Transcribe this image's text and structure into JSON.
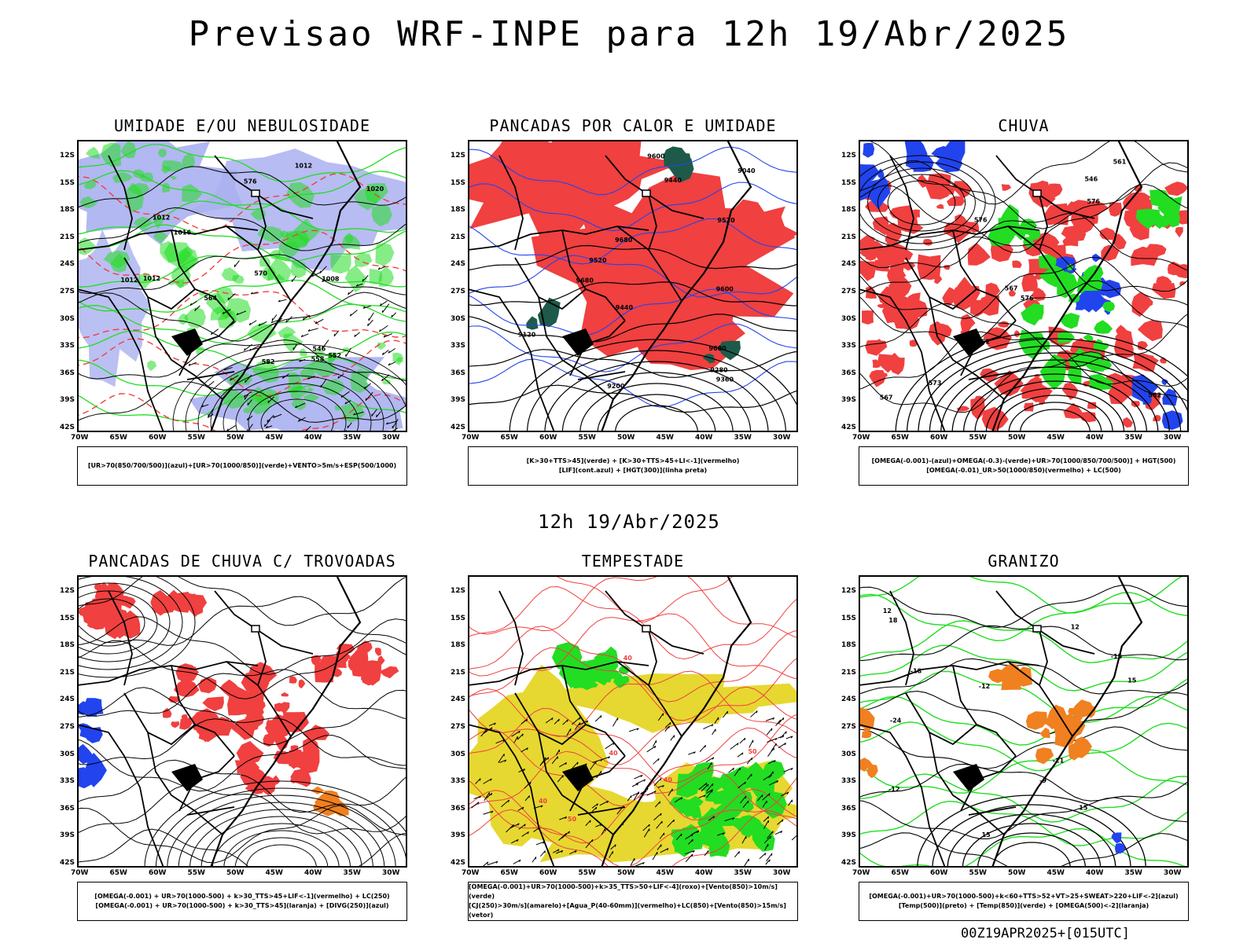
{
  "header": {
    "title": "Previsao WRF-INPE  para 12h 19/Abr/2025",
    "subtitle": "12h 19/Abr/2025",
    "footer": "00Z19APR2025+[015UTC]"
  },
  "axes": {
    "lat_ticks": [
      "12S",
      "15S",
      "18S",
      "21S",
      "24S",
      "27S",
      "30S",
      "33S",
      "36S",
      "39S",
      "42S"
    ],
    "lon_ticks": [
      "70W",
      "65W",
      "60W",
      "55W",
      "50W",
      "45W",
      "40W",
      "35W",
      "30W"
    ]
  },
  "colors": {
    "red": "#f04040",
    "green": "#22dd22",
    "blue": "#2244ee",
    "lavender": "#aab0f0",
    "yellow": "#e6d830",
    "dark_green": "#1e5a4a",
    "orange": "#f08020",
    "black": "#000000"
  },
  "panels": [
    {
      "title": "UMIDADE E/OU NEBULOSIDADE",
      "legend": [
        "[UR>70(850/700/500)](azul)+[UR>70(1000/850)](verde)+VENTO>5m/s+ESP(500/1000)"
      ],
      "contour_labels": [
        "1012",
        "1012",
        "1012",
        "1012",
        "1020",
        "1016",
        "1008",
        "570",
        "576",
        "582",
        "564",
        "558",
        "552",
        "546"
      ]
    },
    {
      "title": "PANCADAS POR CALOR E UMIDADE",
      "legend": [
        "[K>30+TTS>45](verde) + [K>30+TTS>45+LI<-1](vermelho)",
        "[LIF](cont.azul) + [HGT(300)](linha preta)"
      ],
      "contour_labels": [
        "9680",
        "9680",
        "9680",
        "9600",
        "9600",
        "9520",
        "9520",
        "9440",
        "9440",
        "9360",
        "9280",
        "9200",
        "9120",
        "9040"
      ]
    },
    {
      "title": "CHUVA",
      "legend": [
        "[OMEGA(-0.001)-(azul)+OMEGA(-0.3)-(verde)+UR>70(1000/850/700/500)] + HGT(500)",
        "[OMEGA(-0.01)_UR>50(1000/850)(vermelho) + LC(500)"
      ],
      "contour_labels": [
        "576",
        "576",
        "582",
        "576",
        "573",
        "567",
        "561",
        "552",
        "546",
        "567"
      ]
    },
    {
      "title": "PANCADAS DE CHUVA C/ TROVOADAS",
      "legend": [
        "[OMEGA(-0.001) + UR>70(1000-500) + k>30_TTS>45+LIF<-1](vermelho) + LC(250)",
        "[OMEGA(-0.001) + UR>70(1000-500) + k>30_TTS>45](laranja) + [DIVG(250)](azul)"
      ],
      "contour_labels": []
    },
    {
      "title": "TEMPESTADE",
      "legend": [
        "[OMEGA(-0.001)+UR>70(1000-500)+k>35_TTS>50+LIF<-4](roxo)+[Vento(850)>10m/s](verde)",
        "[CJ(250)>30m/s](amarelo)+[Agua_P(40-60mm)](vermelho)+LC(850)+[Vento(850)>15m/s](vetor)"
      ],
      "contour_labels": [
        "50",
        "40",
        "40",
        "50",
        "40",
        "40"
      ]
    },
    {
      "title": "GRANIZO",
      "legend": [
        "[OMEGA(-0.001)+UR>70(1000-500)+k<60+TTS>52+VT>25+SWEAT>220+LIF<-2](azul)",
        "[Temp(500)](preto) + [Temp(850)](verde) + [OMEGA(500)<-2](laranja)"
      ],
      "contour_labels": [
        "-9",
        "-12",
        "-15",
        "-21",
        "-24",
        "15",
        "15",
        "18",
        "12",
        "12",
        "15",
        "-18",
        "-12"
      ]
    }
  ]
}
